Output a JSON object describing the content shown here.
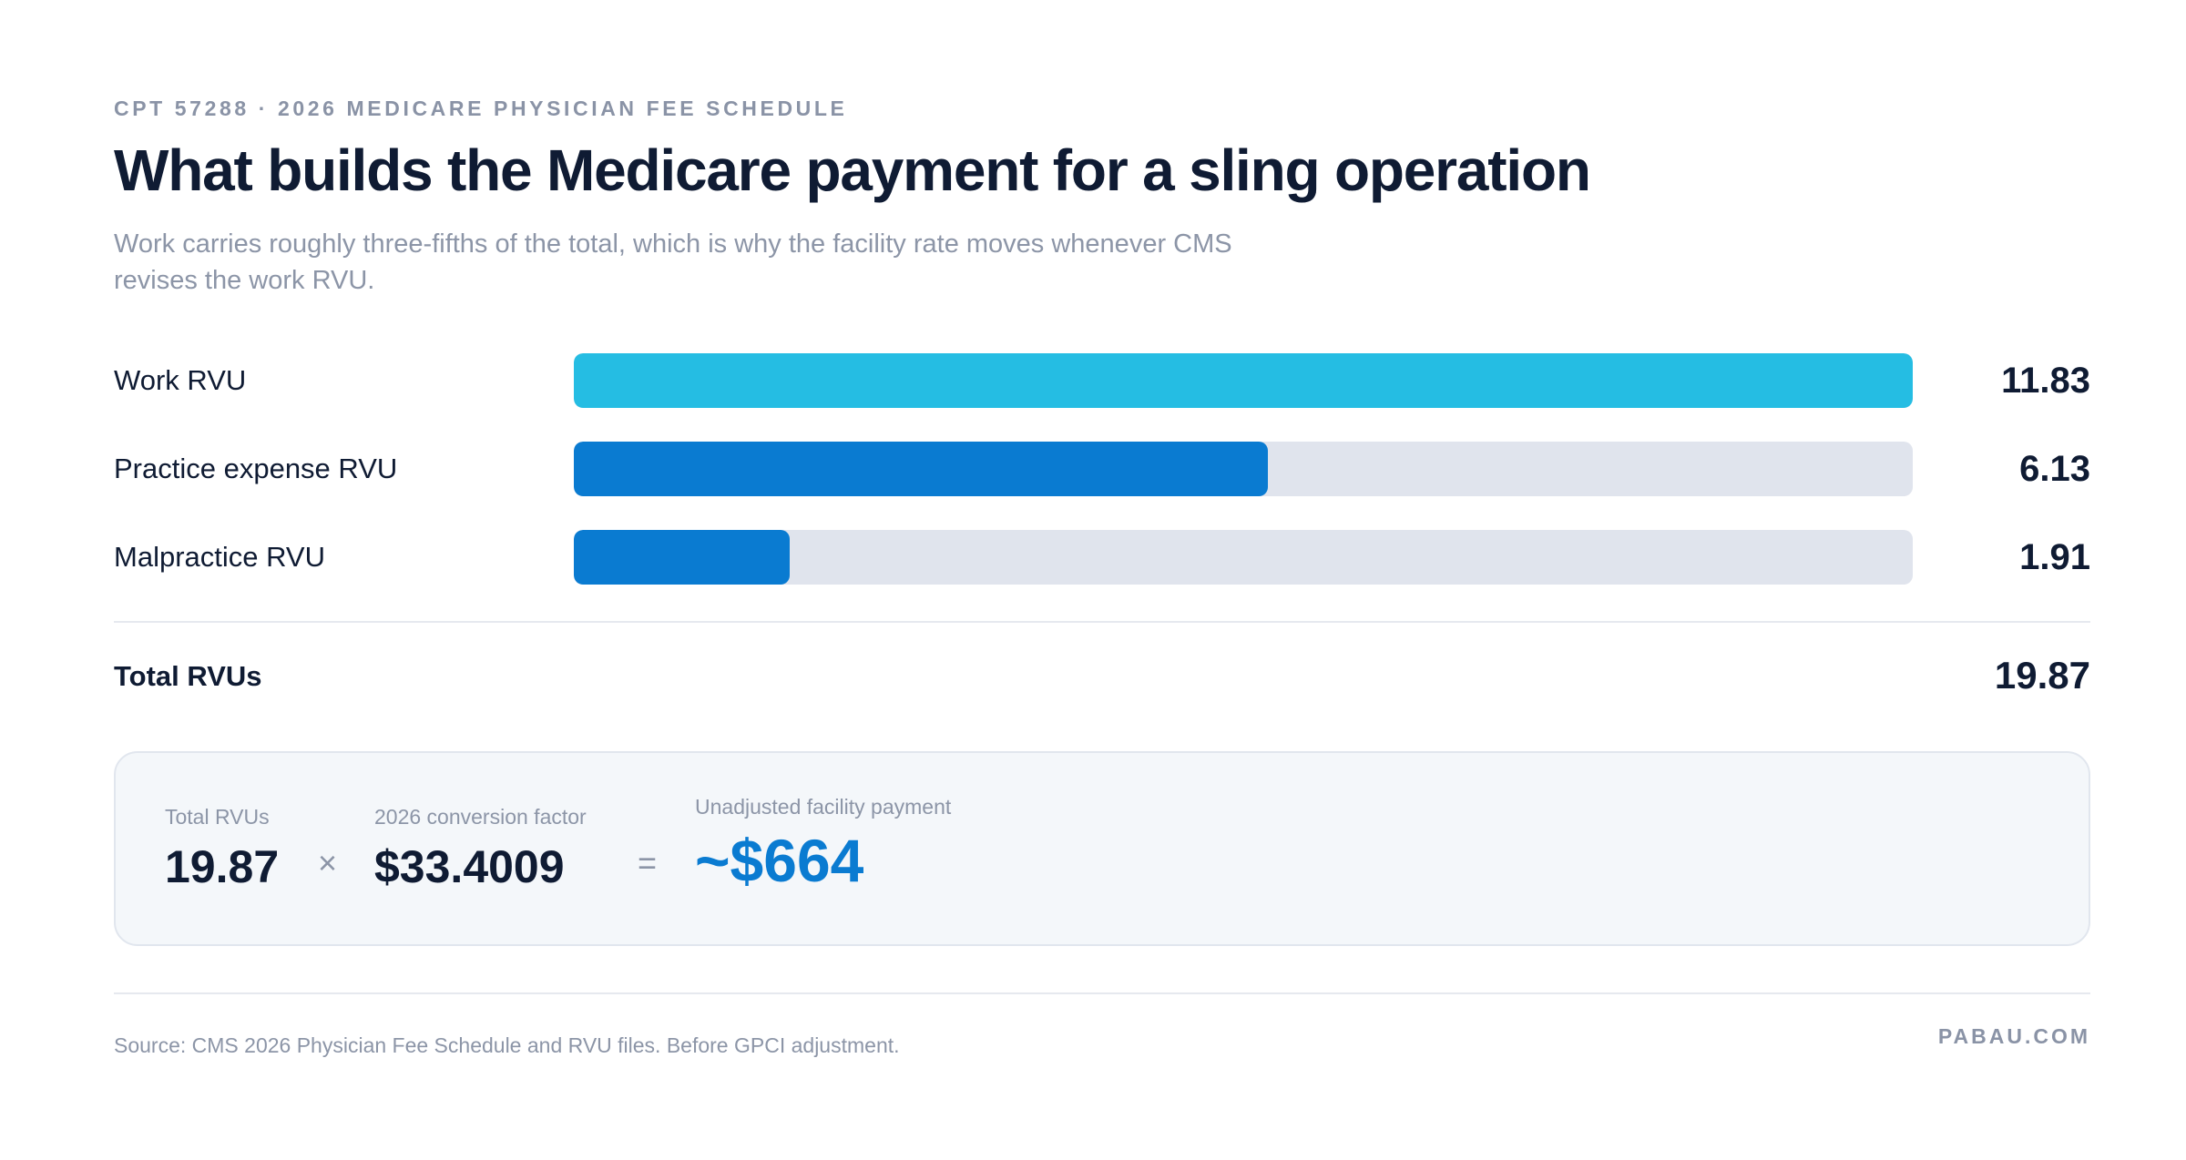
{
  "header": {
    "eyebrow": "CPT 57288 · 2026 MEDICARE PHYSICIAN FEE SCHEDULE",
    "title": "What builds the Medicare payment for a sling operation",
    "subtitle": "Work carries roughly three-fifths of the total, which is why the facility rate moves whenever CMS revises the work RVU."
  },
  "colors": {
    "work": "#25bde3",
    "practice_expense": "#0a7bd1",
    "malpractice": "#0a7bd1",
    "track": "#e0e4ed",
    "accent": "#0a7bd1"
  },
  "chart_data": {
    "type": "bar",
    "orientation": "horizontal",
    "categories": [
      "Work RVU",
      "Practice expense RVU",
      "Malpractice RVU"
    ],
    "values": [
      11.83,
      6.13,
      1.91
    ],
    "value_labels": [
      "11.83",
      "6.13",
      "1.91"
    ],
    "xlim": [
      0,
      11.83
    ],
    "grid": false,
    "legend": "none",
    "title": "What builds the Medicare payment for a sling operation"
  },
  "total": {
    "label": "Total RVUs",
    "value": "19.87"
  },
  "calculation": {
    "rvu_caption": "Total RVUs",
    "rvu_value": "19.87",
    "times_symbol": "×",
    "cf_caption": "2026 conversion factor",
    "cf_value": "$33.4009",
    "equals_symbol": "=",
    "result_caption": "Unadjusted facility payment",
    "result_value": "~$664"
  },
  "footer": {
    "source": "Source: CMS 2026 Physician Fee Schedule and RVU files. Before GPCI adjustment.",
    "brand": "PABAU.COM"
  }
}
